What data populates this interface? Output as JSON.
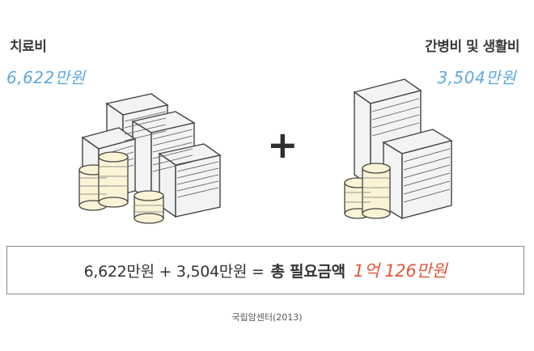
{
  "left": {
    "title": "치료비",
    "amount": "6,622만원"
  },
  "right": {
    "title": "간병비 및 생활비",
    "amount": "3,504만원"
  },
  "operator": "+",
  "equation": {
    "expression": "6,622만원 + 3,504만원 =",
    "label": "총 필요금액",
    "total": "1억 126만원"
  },
  "source": "국립암센터(2013)",
  "colors": {
    "amount_blue": "#5fa9dd",
    "total_red": "#e0583e"
  },
  "icons": [
    "money-stacks-coins-icon",
    "money-stacks-coins-icon"
  ]
}
